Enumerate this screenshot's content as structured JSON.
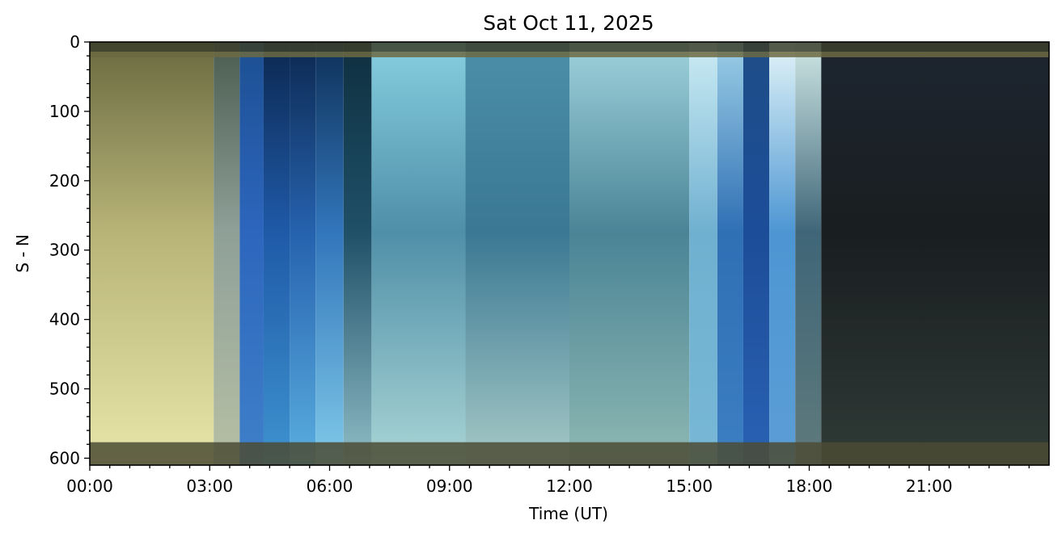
{
  "chart_data": {
    "type": "heatmap",
    "title": "Sat Oct 11, 2025",
    "xlabel": "Time (UT)",
    "ylabel": "S - N",
    "x_unit": "hours UT",
    "xlim": [
      0,
      24
    ],
    "ylim": [
      610,
      0
    ],
    "x_ticks": [
      {
        "value": 0,
        "label": "00:00"
      },
      {
        "value": 3,
        "label": "03:00"
      },
      {
        "value": 6,
        "label": "06:00"
      },
      {
        "value": 9,
        "label": "09:00"
      },
      {
        "value": 12,
        "label": "12:00"
      },
      {
        "value": 15,
        "label": "15:00"
      },
      {
        "value": 18,
        "label": "18:00"
      },
      {
        "value": 21,
        "label": "21:00"
      }
    ],
    "y_ticks": [
      {
        "value": 0,
        "label": "0"
      },
      {
        "value": 100,
        "label": "100"
      },
      {
        "value": 200,
        "label": "200"
      },
      {
        "value": 300,
        "label": "300"
      },
      {
        "value": 400,
        "label": "400"
      },
      {
        "value": 500,
        "label": "500"
      },
      {
        "value": 600,
        "label": "600"
      }
    ],
    "grid": false,
    "segments": [
      {
        "start": 0.0,
        "end": 3.1,
        "top": "#6a6a40",
        "mid": "#b8b478",
        "bottom": "#e8e6a8"
      },
      {
        "start": 3.1,
        "end": 3.75,
        "top": "#4a5c50",
        "mid": "#8fa098",
        "bottom": "#b6c0a4"
      },
      {
        "start": 3.75,
        "end": 4.35,
        "top": "#1c4f92",
        "mid": "#2d66bd",
        "bottom": "#3f80c9"
      },
      {
        "start": 4.35,
        "end": 5.0,
        "top": "#0c2850",
        "mid": "#1f5aa8",
        "bottom": "#3e93cf"
      },
      {
        "start": 5.0,
        "end": 5.65,
        "top": "#0c2850",
        "mid": "#2662ae",
        "bottom": "#5aaee0"
      },
      {
        "start": 5.65,
        "end": 6.35,
        "top": "#0e3058",
        "mid": "#3276bb",
        "bottom": "#80cae9"
      },
      {
        "start": 6.35,
        "end": 7.05,
        "top": "#0e2f3f",
        "mid": "#1f5068",
        "bottom": "#8fbdc6"
      },
      {
        "start": 7.05,
        "end": 9.4,
        "top": "#86cfe0",
        "mid": "#4f8fa8",
        "bottom": "#a9d5d5"
      },
      {
        "start": 9.4,
        "end": 12.0,
        "top": "#4c8ea8",
        "mid": "#3a7893",
        "bottom": "#a6c9c6"
      },
      {
        "start": 12.0,
        "end": 15.0,
        "top": "#9ed2dc",
        "mid": "#4a8496",
        "bottom": "#8eb8b2"
      },
      {
        "start": 15.0,
        "end": 15.7,
        "top": "#ccecf4",
        "mid": "#6fb0d0",
        "bottom": "#78b8d6"
      },
      {
        "start": 15.7,
        "end": 16.35,
        "top": "#9ccfe6",
        "mid": "#2f6fb4",
        "bottom": "#3c7fc2"
      },
      {
        "start": 16.35,
        "end": 17.0,
        "top": "#1f4d88",
        "mid": "#1c4d98",
        "bottom": "#2a62b4"
      },
      {
        "start": 17.0,
        "end": 17.65,
        "top": "#e2f4f8",
        "mid": "#4d96d3",
        "bottom": "#5c9ed6"
      },
      {
        "start": 17.65,
        "end": 18.3,
        "top": "#cfe7e6",
        "mid": "#3f6678",
        "bottom": "#5f7a7c"
      },
      {
        "start": 18.3,
        "end": 24.0,
        "top": "#1d2530",
        "mid": "#191e20",
        "bottom": "#2f3a36"
      }
    ],
    "bands": [
      {
        "y0": 0,
        "y1": 14,
        "color": "#3c3f2c"
      },
      {
        "y0": 14,
        "y1": 22,
        "color": "#6d6a42"
      },
      {
        "y0": 577,
        "y1": 610,
        "color": "#4b4b34"
      }
    ]
  }
}
